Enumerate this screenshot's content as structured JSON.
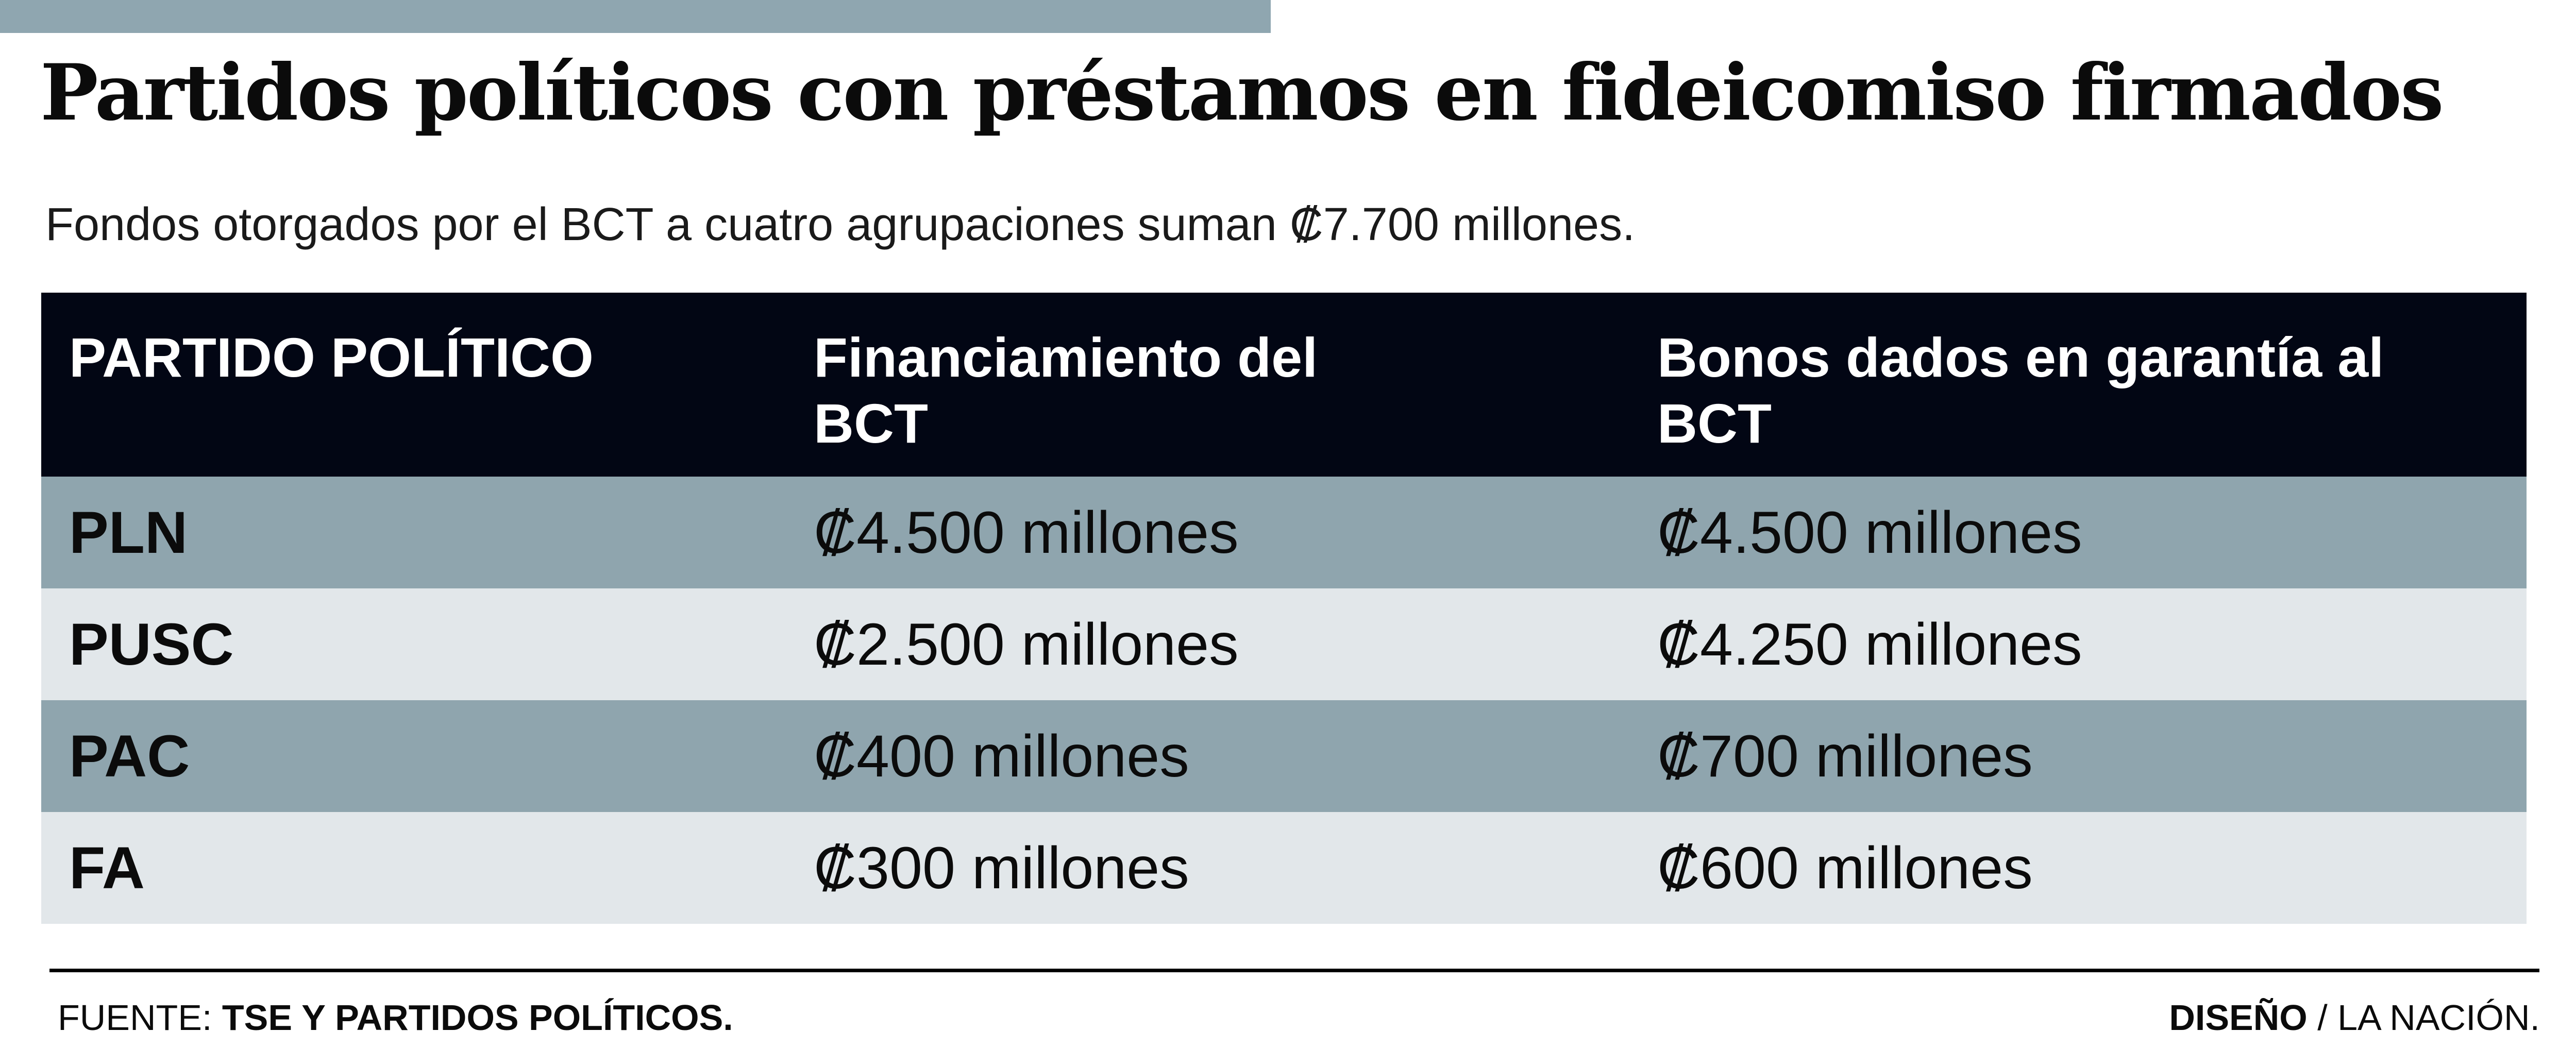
{
  "header": {
    "title": "Partidos políticos con préstamos en fideicomiso firmados",
    "subtitle": "Fondos otorgados por el BCT a cuatro agrupaciones suman ₡7.700 millones."
  },
  "table": {
    "columns": [
      "PARTIDO POLÍTICO",
      "Financiamiento del BCT",
      "Bonos dados en garantía al BCT"
    ],
    "rows": [
      {
        "party": "PLN",
        "financing": "₡4.500 millones",
        "bonds": "₡4.500 millones"
      },
      {
        "party": "PUSC",
        "financing": "₡2.500 millones",
        "bonds": "₡4.250 millones"
      },
      {
        "party": "PAC",
        "financing": "₡400 millones",
        "bonds": "₡700 millones"
      },
      {
        "party": "FA",
        "financing": "₡300 millones",
        "bonds": "₡600 millones"
      }
    ]
  },
  "footer": {
    "source_label": "FUENTE:",
    "source_value": "TSE Y PARTIDOS POLÍTICOS.",
    "design_label": "DISEÑO",
    "design_value": "/ LA NACIÓN."
  },
  "colors": {
    "header_bg": "#020614",
    "row_dark": "#8fa5ae",
    "row_light": "#e2e7ea",
    "accent_bar": "#8fa6b0"
  }
}
